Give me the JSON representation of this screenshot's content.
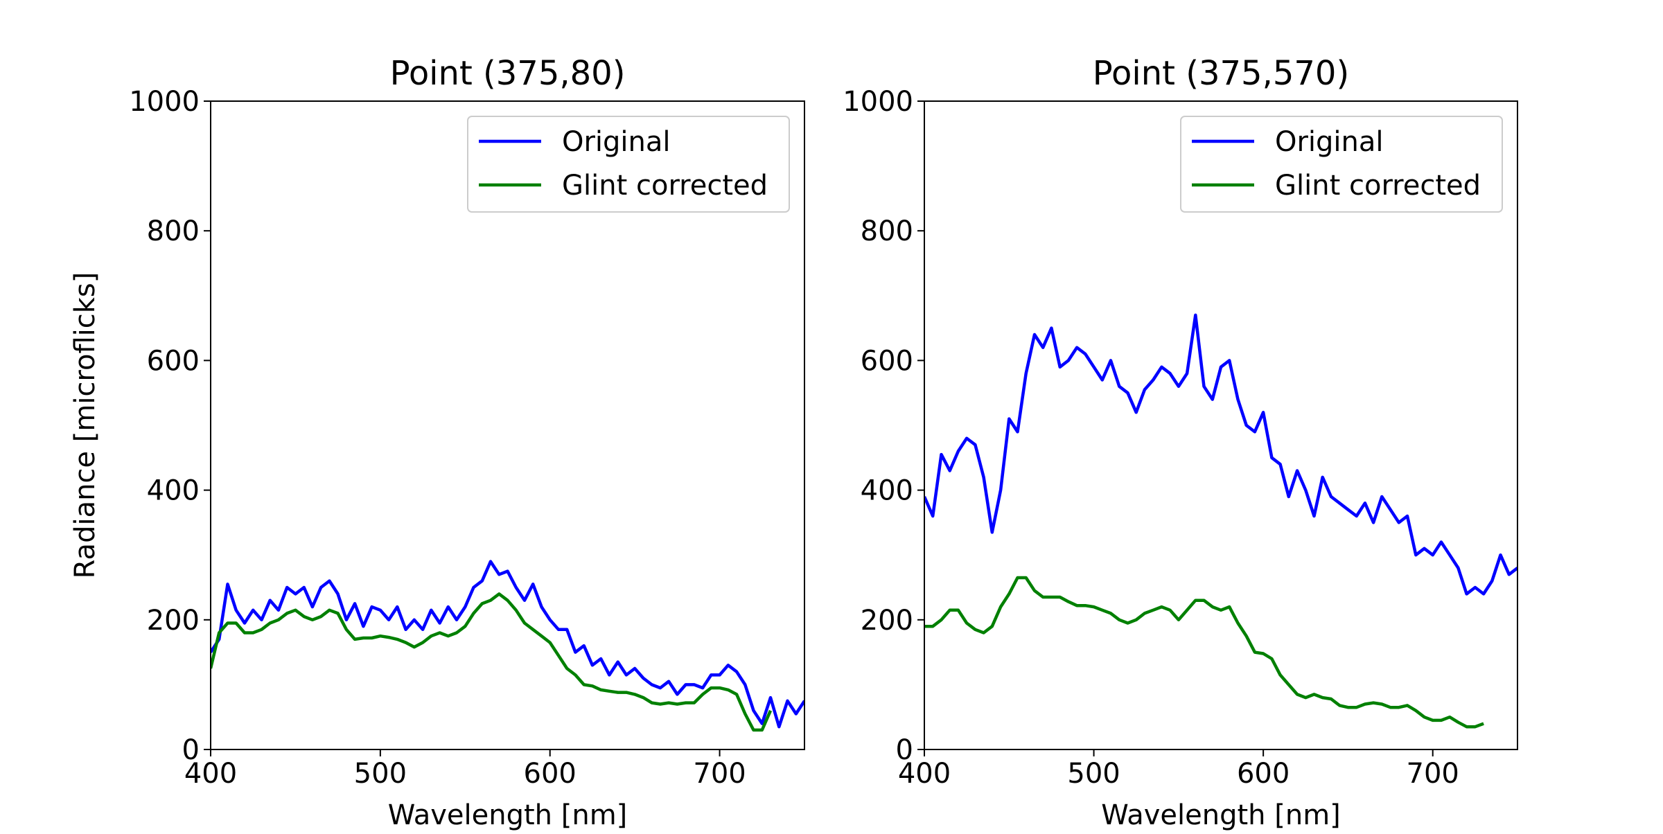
{
  "chart_data": [
    {
      "type": "line",
      "title": "Point (375,80)",
      "xlabel": "Wavelength [nm]",
      "ylabel": "Radiance [microflicks]",
      "x": [
        400,
        405,
        410,
        415,
        420,
        425,
        430,
        435,
        440,
        445,
        450,
        455,
        460,
        465,
        470,
        475,
        480,
        485,
        490,
        495,
        500,
        505,
        510,
        515,
        520,
        525,
        530,
        535,
        540,
        545,
        550,
        555,
        560,
        565,
        570,
        575,
        580,
        585,
        590,
        595,
        600,
        605,
        610,
        615,
        620,
        625,
        630,
        635,
        640,
        645,
        650,
        655,
        660,
        665,
        670,
        675,
        680,
        685,
        690,
        695,
        700,
        705,
        710,
        715,
        720,
        725,
        730,
        735,
        740,
        745,
        750
      ],
      "series": [
        {
          "name": "Original",
          "color": "#0000ff",
          "values": [
            150,
            170,
            255,
            215,
            195,
            215,
            200,
            230,
            215,
            250,
            240,
            250,
            220,
            250,
            260,
            240,
            200,
            225,
            190,
            220,
            215,
            200,
            220,
            185,
            200,
            185,
            215,
            195,
            220,
            200,
            220,
            250,
            260,
            290,
            270,
            275,
            250,
            230,
            255,
            220,
            200,
            185,
            185,
            150,
            160,
            130,
            140,
            115,
            135,
            115,
            125,
            110,
            100,
            95,
            105,
            85,
            100,
            100,
            95,
            115,
            115,
            130,
            120,
            100,
            60,
            40,
            80,
            35,
            75,
            55,
            75
          ]
        },
        {
          "name": "Glint corrected",
          "color": "#008000",
          "values": [
            125,
            180,
            195,
            195,
            180,
            180,
            185,
            195,
            200,
            210,
            215,
            205,
            200,
            205,
            215,
            210,
            185,
            170,
            172,
            172,
            175,
            173,
            170,
            165,
            158,
            165,
            175,
            180,
            175,
            180,
            190,
            210,
            225,
            230,
            240,
            230,
            215,
            195,
            185,
            175,
            165,
            145,
            125,
            115,
            100,
            98,
            92,
            90,
            88,
            88,
            85,
            80,
            72,
            70,
            72,
            70,
            72,
            72,
            85,
            95,
            95,
            92,
            85,
            55,
            30,
            30,
            60,
            null,
            null,
            null,
            null
          ]
        }
      ],
      "xlim": [
        400,
        750
      ],
      "xticks": [
        400,
        500,
        600,
        700
      ],
      "ylim": [
        0,
        1000
      ],
      "yticks": [
        0,
        200,
        400,
        600,
        800,
        1000
      ],
      "legend": "upper right"
    },
    {
      "type": "line",
      "title": "Point (375,570)",
      "xlabel": "Wavelength [nm]",
      "x": [
        400,
        405,
        410,
        415,
        420,
        425,
        430,
        435,
        440,
        445,
        450,
        455,
        460,
        465,
        470,
        475,
        480,
        485,
        490,
        495,
        500,
        505,
        510,
        515,
        520,
        525,
        530,
        535,
        540,
        545,
        550,
        555,
        560,
        565,
        570,
        575,
        580,
        585,
        590,
        595,
        600,
        605,
        610,
        615,
        620,
        625,
        630,
        635,
        640,
        645,
        650,
        655,
        660,
        665,
        670,
        675,
        680,
        685,
        690,
        695,
        700,
        705,
        710,
        715,
        720,
        725,
        730,
        735,
        740,
        745,
        750
      ],
      "series": [
        {
          "name": "Original",
          "color": "#0000ff",
          "values": [
            390,
            360,
            455,
            430,
            460,
            480,
            470,
            420,
            335,
            400,
            510,
            490,
            580,
            640,
            620,
            650,
            590,
            600,
            620,
            610,
            590,
            570,
            600,
            560,
            550,
            520,
            555,
            570,
            590,
            580,
            560,
            580,
            670,
            560,
            540,
            590,
            600,
            540,
            500,
            490,
            520,
            450,
            440,
            390,
            430,
            400,
            360,
            420,
            390,
            380,
            370,
            360,
            380,
            350,
            390,
            370,
            350,
            360,
            300,
            310,
            300,
            320,
            300,
            280,
            240,
            250,
            240,
            260,
            300,
            270,
            280
          ]
        },
        {
          "name": "Glint corrected",
          "color": "#008000",
          "values": [
            190,
            190,
            200,
            215,
            215,
            195,
            185,
            180,
            190,
            220,
            240,
            265,
            265,
            245,
            235,
            235,
            235,
            228,
            222,
            222,
            220,
            215,
            210,
            200,
            195,
            200,
            210,
            215,
            220,
            215,
            200,
            215,
            230,
            230,
            220,
            215,
            220,
            195,
            175,
            150,
            148,
            140,
            115,
            100,
            85,
            80,
            85,
            80,
            78,
            68,
            65,
            65,
            70,
            72,
            70,
            65,
            65,
            68,
            60,
            50,
            45,
            45,
            50,
            42,
            35,
            35,
            40,
            null,
            null,
            null,
            null
          ]
        }
      ],
      "xlim": [
        400,
        750
      ],
      "xticks": [
        400,
        500,
        600,
        700
      ],
      "ylim": [
        0,
        1000
      ],
      "yticks": [
        0,
        200,
        400,
        600,
        800,
        1000
      ],
      "legend": "upper right"
    }
  ]
}
